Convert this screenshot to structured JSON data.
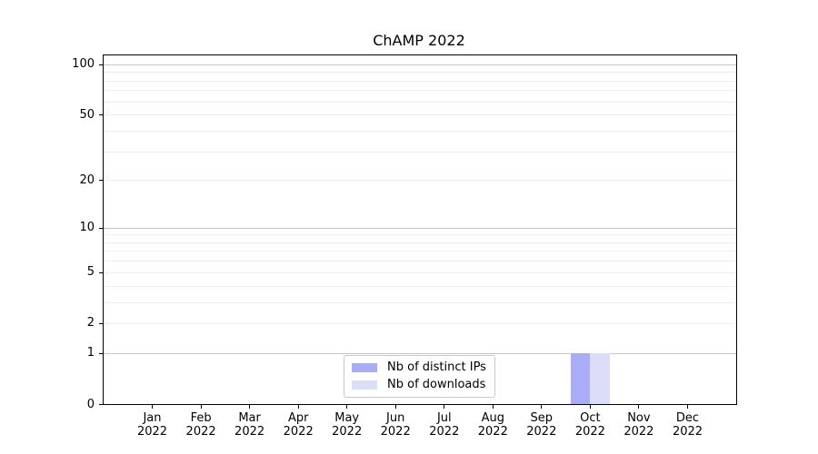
{
  "chart_data": {
    "type": "bar",
    "title": "ChAMP 2022",
    "xlabel": "",
    "ylabel": "",
    "categories": [
      "Jan",
      "Feb",
      "Mar",
      "Apr",
      "May",
      "Jun",
      "Jul",
      "Aug",
      "Sep",
      "Oct",
      "Nov",
      "Dec"
    ],
    "x_year_label": "2022",
    "series": [
      {
        "name": "Nb of distinct IPs",
        "color": "#abacf6",
        "values": [
          0,
          0,
          0,
          0,
          0,
          0,
          0,
          0,
          0,
          1,
          0,
          0
        ]
      },
      {
        "name": "Nb of downloads",
        "color": "#dbddf9",
        "values": [
          0,
          0,
          0,
          0,
          0,
          0,
          0,
          0,
          0,
          1,
          0,
          0
        ]
      }
    ],
    "y_axis": {
      "scale": "log10(1+v)",
      "min": 0,
      "max": 113,
      "tick_values": [
        0,
        1,
        2,
        5,
        10,
        20,
        50,
        100
      ],
      "tick_labels": [
        "0",
        "1",
        "2",
        "5",
        "10",
        "20",
        "50",
        "100"
      ],
      "major_grid_values": [
        1,
        10,
        100
      ],
      "minor_grid_values": [
        2,
        3,
        4,
        5,
        6,
        7,
        8,
        9,
        20,
        30,
        40,
        50,
        60,
        70,
        80,
        90
      ]
    },
    "legend": {
      "position": "lower-center"
    },
    "grid": "horizontal",
    "colors": {
      "major_grid": "#c6c6c6",
      "minor_grid": "#ededed",
      "spine": "#000000",
      "background": "#ffffff"
    }
  }
}
